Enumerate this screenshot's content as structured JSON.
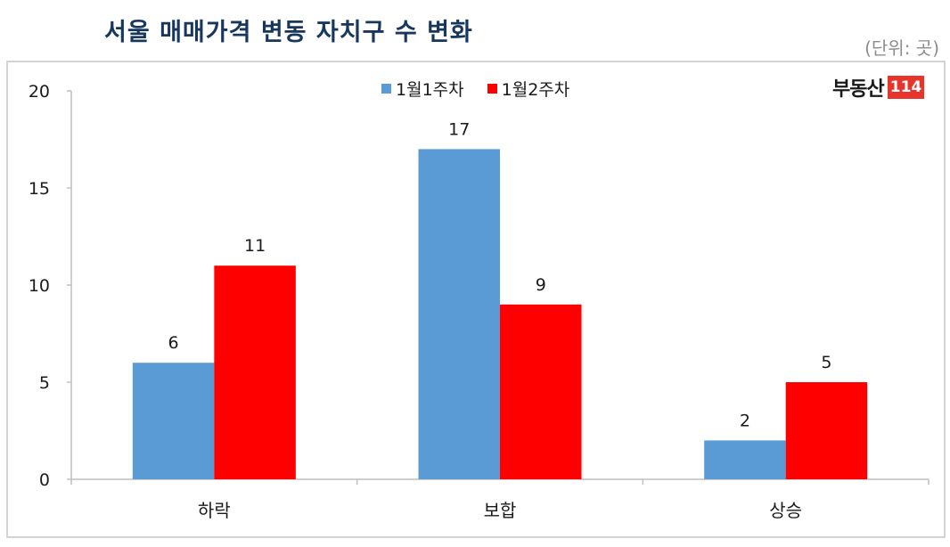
{
  "header": {
    "title": "서울 매매가격 변동 자치구 수 변화",
    "unit": "(단위: 곳)"
  },
  "logo": {
    "text": "부동산",
    "badge": "114"
  },
  "colors": {
    "series1": "#5b9bd5",
    "series2": "#ff0000",
    "title": "#17375e",
    "axis": "#bfbfbf"
  },
  "chart_data": {
    "type": "bar",
    "title": "서울 매매가격 변동 자치구 수 변화",
    "subtitle": "(단위: 곳)",
    "xlabel": "",
    "ylabel": "",
    "categories": [
      "하락",
      "보합",
      "상승"
    ],
    "series": [
      {
        "name": "1월1주차",
        "color": "#5b9bd5",
        "values": [
          6,
          17,
          2
        ]
      },
      {
        "name": "1월2주차",
        "color": "#ff0000",
        "values": [
          11,
          9,
          5
        ]
      }
    ],
    "ylim": [
      0,
      20
    ],
    "yticks": [
      0,
      5,
      10,
      15,
      20
    ],
    "grid": false,
    "data_labels": true,
    "legend_position": "top"
  }
}
